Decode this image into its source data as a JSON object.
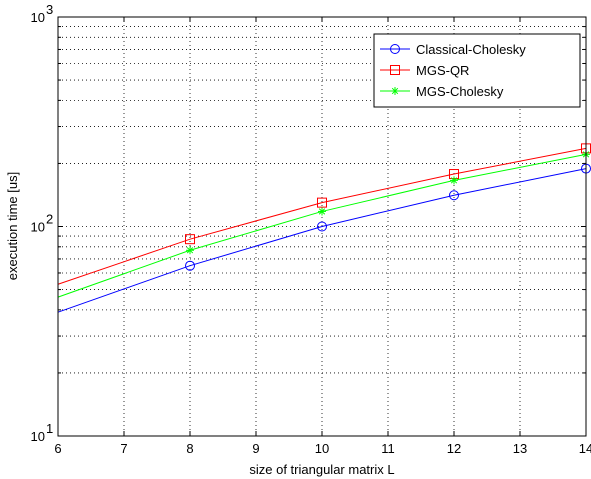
{
  "chart_data": {
    "type": "line",
    "title": "",
    "xlabel": "size of triangular matrix L",
    "ylabel": "execution time [us]",
    "xlim": [
      6,
      14
    ],
    "ylim": [
      10,
      1000
    ],
    "yscale": "log",
    "grid": true,
    "legend": "top-right",
    "xticks": [
      "6",
      "7",
      "8",
      "9",
      "10",
      "11",
      "12",
      "13",
      "14"
    ],
    "yticks": [
      {
        "base": "10",
        "exp": "1",
        "value": 10
      },
      {
        "base": "10",
        "exp": "2",
        "value": 100
      },
      {
        "base": "10",
        "exp": "3",
        "value": 1000
      }
    ],
    "series": [
      {
        "name": "Classical-Cholesky",
        "color": "#0000ff",
        "marker": "circle",
        "x": [
          6,
          8,
          10,
          12,
          14
        ],
        "y": [
          39,
          65,
          100,
          141,
          189
        ]
      },
      {
        "name": "MGS-QR",
        "color": "#ff0000",
        "marker": "square",
        "x": [
          6,
          8,
          10,
          12,
          14
        ],
        "y": [
          53,
          87,
          130,
          178,
          236
        ]
      },
      {
        "name": "MGS-Cholesky",
        "color": "#00ff00",
        "marker": "star",
        "x": [
          6,
          8,
          10,
          12,
          14
        ],
        "y": [
          46,
          77,
          118,
          166,
          221
        ]
      }
    ]
  }
}
